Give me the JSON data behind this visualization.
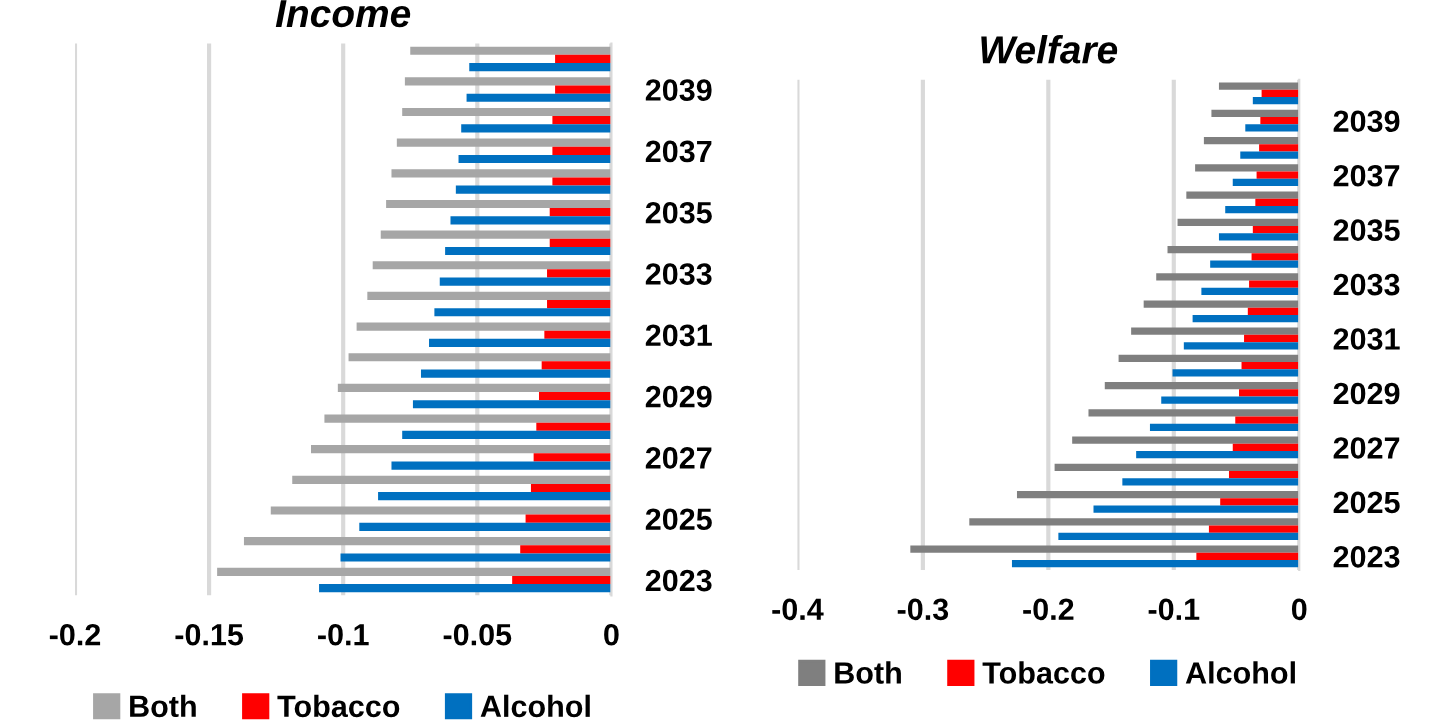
{
  "chart_data": [
    {
      "type": "bar",
      "title": "Income",
      "orientation": "horizontal",
      "categories": [
        null,
        "2039",
        null,
        "2037",
        null,
        "2035",
        null,
        "2033",
        null,
        "2031",
        null,
        "2029",
        null,
        "2027",
        null,
        "2025",
        null,
        "2023"
      ],
      "series": [
        {
          "name": "Both",
          "color": "#a6a6a6",
          "values": [
            -0.075,
            -0.077,
            -0.078,
            -0.08,
            -0.082,
            -0.084,
            -0.086,
            -0.089,
            -0.091,
            -0.095,
            -0.098,
            -0.102,
            -0.107,
            -0.112,
            -0.119,
            -0.127,
            -0.137,
            -0.147
          ]
        },
        {
          "name": "Tobacco",
          "color": "#ff0000",
          "values": [
            -0.021,
            -0.021,
            -0.022,
            -0.022,
            -0.022,
            -0.023,
            -0.023,
            -0.024,
            -0.024,
            -0.025,
            -0.026,
            -0.027,
            -0.028,
            -0.029,
            -0.03,
            -0.032,
            -0.034,
            -0.037
          ]
        },
        {
          "name": "Alcohol",
          "color": "#0070c0",
          "values": [
            -0.053,
            -0.054,
            -0.056,
            -0.057,
            -0.058,
            -0.06,
            -0.062,
            -0.064,
            -0.066,
            -0.068,
            -0.071,
            -0.074,
            -0.078,
            -0.082,
            -0.087,
            -0.094,
            -0.101,
            -0.109
          ]
        }
      ],
      "xlim": [
        -0.2,
        0
      ],
      "xticks": [
        -0.2,
        -0.15,
        -0.1,
        -0.05,
        0
      ],
      "grid": "x",
      "legend": "bottom"
    },
    {
      "type": "bar",
      "title": "Welfare",
      "orientation": "horizontal",
      "categories": [
        null,
        "2039",
        null,
        "2037",
        null,
        "2035",
        null,
        "2033",
        null,
        "2031",
        null,
        "2029",
        null,
        "2027",
        null,
        "2025",
        null,
        "2023"
      ],
      "series": [
        {
          "name": "Both",
          "color": "#7f7f7f",
          "values": [
            -0.064,
            -0.07,
            -0.076,
            -0.083,
            -0.09,
            -0.097,
            -0.105,
            -0.114,
            -0.124,
            -0.134,
            -0.144,
            -0.155,
            -0.168,
            -0.181,
            -0.195,
            -0.225,
            -0.263,
            -0.31
          ]
        },
        {
          "name": "Tobacco",
          "color": "#ff0000",
          "values": [
            -0.03,
            -0.031,
            -0.032,
            -0.034,
            -0.035,
            -0.037,
            -0.038,
            -0.04,
            -0.041,
            -0.044,
            -0.046,
            -0.048,
            -0.051,
            -0.053,
            -0.056,
            -0.063,
            -0.072,
            -0.082
          ]
        },
        {
          "name": "Alcohol",
          "color": "#0070c0",
          "values": [
            -0.037,
            -0.043,
            -0.047,
            -0.053,
            -0.059,
            -0.064,
            -0.071,
            -0.078,
            -0.085,
            -0.092,
            -0.101,
            -0.11,
            -0.119,
            -0.13,
            -0.141,
            -0.164,
            -0.192,
            -0.229
          ]
        }
      ],
      "xlim": [
        -0.4,
        0
      ],
      "xticks": [
        -0.4,
        -0.3,
        -0.2,
        -0.1,
        0
      ],
      "grid": "x",
      "legend": "bottom"
    }
  ]
}
